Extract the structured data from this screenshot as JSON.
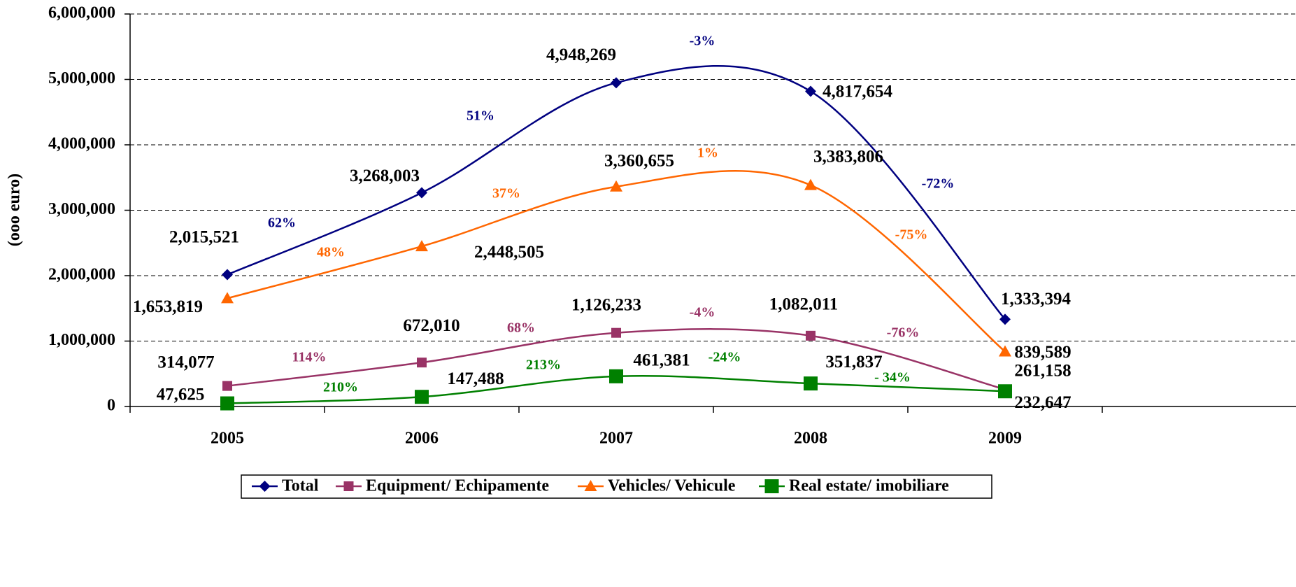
{
  "chart_data": {
    "type": "line",
    "y_axis_label": "(ooo euro)",
    "categories": [
      "2005",
      "2006",
      "2007",
      "2008",
      "2009"
    ],
    "ylim": [
      0,
      6000000
    ],
    "yticks": [
      0,
      {
        "value": 1000000,
        "label": "1,000,000"
      },
      {
        "value": 2000000,
        "label": "2,000,000"
      },
      {
        "value": 3000000,
        "label": "3,000,000"
      },
      {
        "value": 4000000,
        "label": "4,000,000"
      },
      {
        "value": 5000000,
        "label": "5,000,000"
      },
      {
        "value": 6000000,
        "label": "6,000,000"
      }
    ],
    "grid": true,
    "legend": "bottom",
    "series": [
      {
        "name": "Total",
        "color": "#000080",
        "marker": "diamond",
        "values": [
          2015521,
          3268003,
          4948269,
          4817654,
          1333394
        ],
        "value_labels": [
          "2,015,521",
          "3,268,003",
          "4,948,269",
          "4,817,654",
          "1,333,394"
        ],
        "changes": [
          "62%",
          "51%",
          "-3%",
          "-72%"
        ]
      },
      {
        "name": "Equipment/ Echipamente",
        "color": "#993366",
        "marker": "square",
        "values": [
          314077,
          672010,
          1126233,
          1082011,
          261158
        ],
        "value_labels": [
          "314,077",
          "672,010",
          "1,126,233",
          "1,082,011",
          "261,158"
        ],
        "changes": [
          "114%",
          "68%",
          "-4%",
          "-76%"
        ]
      },
      {
        "name": "Vehicles/ Vehicule",
        "color": "#ff6600",
        "marker": "triangle",
        "values": [
          1653819,
          2448505,
          3360655,
          3383806,
          839589
        ],
        "value_labels": [
          "1,653,819",
          "2,448,505",
          "3,360,655",
          "3,383,806",
          "839,589"
        ],
        "changes": [
          "48%",
          "37%",
          "1%",
          "-75%"
        ]
      },
      {
        "name": "Real estate/ imobiliare",
        "color": "#008000",
        "marker": "bigsquare",
        "values": [
          47625,
          147488,
          461381,
          351837,
          232647
        ],
        "value_labels": [
          "47,625",
          "147,488",
          "461,381",
          "351,837",
          "232,647"
        ],
        "changes": [
          "210%",
          "213%",
          "-24%",
          "- 34%"
        ]
      }
    ]
  }
}
